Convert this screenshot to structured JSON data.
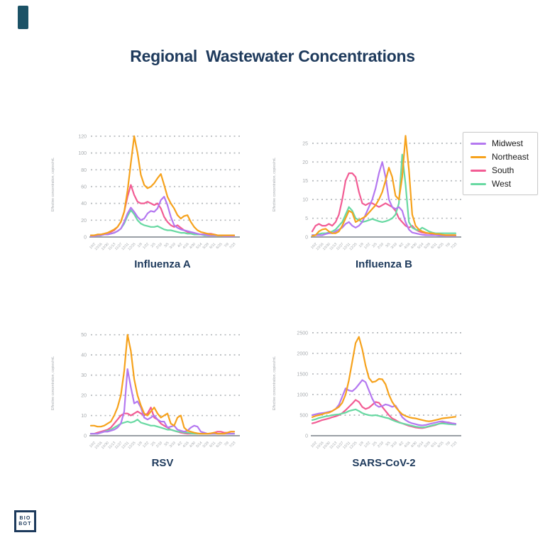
{
  "title": "Regional  Wastewater Concentrations",
  "brand": {
    "logo_line1": "BIO",
    "logo_line2": "BOT"
  },
  "colors": {
    "title_navy": "#1e3a5c",
    "axis_gray": "#9aa0a6",
    "tick_gray": "#a6aaae",
    "grid_gray": "#b4b8bc",
    "midwest_purple": "#b478f0",
    "northeast_orange": "#f6a21c",
    "south_pink": "#f25c94",
    "west_green": "#68d9a2"
  },
  "legend": {
    "entries": [
      {
        "label": "Midwest",
        "color": "#b478f0"
      },
      {
        "label": "Northeast",
        "color": "#f6a21c"
      },
      {
        "label": "South",
        "color": "#f25c94"
      },
      {
        "label": "West",
        "color": "#68d9a2"
      }
    ]
  },
  "ylabel": "Effective concentration, copies/mL",
  "x_ticks": [
    "10/2",
    "10/16",
    "10/30",
    "11/13",
    "11/27",
    "12/11",
    "12/25",
    "1/8",
    "1/22",
    "2/5",
    "2/19",
    "3/5",
    "3/19",
    "4/2",
    "4/16",
    "4/30",
    "5/14",
    "5/28",
    "6/11",
    "6/25",
    "7/9",
    "7/23"
  ],
  "chart_data": [
    {
      "type": "line",
      "title": "Influenza A",
      "ylabel": "Effective concentration, copies/mL",
      "ylim": [
        0,
        125
      ],
      "yticks": [
        0,
        20,
        40,
        60,
        80,
        100,
        120
      ],
      "grid": "dotted-horizontal",
      "legend_position": "figure-right",
      "series": [
        {
          "name": "South",
          "color": "#f25c94",
          "values": [
            2,
            2,
            2,
            3,
            4,
            5,
            6,
            8,
            12,
            18,
            30,
            48,
            62,
            50,
            42,
            40,
            40,
            42,
            40,
            38,
            40,
            34,
            24,
            18,
            14,
            12,
            14,
            11,
            8,
            6,
            5,
            4,
            3,
            3,
            3,
            4,
            4,
            3,
            2,
            2,
            2,
            2,
            2,
            2
          ]
        },
        {
          "name": "West",
          "color": "#68d9a2",
          "values": [
            1,
            1,
            2,
            2,
            3,
            3,
            4,
            5,
            7,
            10,
            16,
            25,
            32,
            27,
            20,
            16,
            14,
            13,
            12,
            12,
            13,
            11,
            9,
            8,
            8,
            7,
            6,
            5,
            5,
            4,
            4,
            3,
            3,
            3,
            2,
            2,
            2,
            2,
            2,
            2,
            1,
            1,
            1,
            1
          ]
        },
        {
          "name": "Midwest",
          "color": "#b478f0",
          "values": [
            1,
            1,
            2,
            2,
            3,
            3,
            4,
            5,
            7,
            10,
            18,
            28,
            35,
            30,
            24,
            20,
            22,
            28,
            31,
            30,
            34,
            44,
            48,
            38,
            24,
            14,
            11,
            9,
            8,
            7,
            6,
            5,
            4,
            3,
            3,
            2,
            2,
            2,
            2,
            2,
            1,
            1,
            1,
            1
          ]
        },
        {
          "name": "Northeast",
          "color": "#f6a21c",
          "values": [
            2,
            2,
            3,
            3,
            4,
            5,
            7,
            9,
            12,
            18,
            30,
            55,
            88,
            120,
            100,
            74,
            62,
            58,
            60,
            64,
            70,
            75,
            62,
            48,
            40,
            34,
            26,
            22,
            25,
            26,
            18,
            12,
            8,
            6,
            5,
            4,
            3,
            3,
            2,
            2,
            2,
            2,
            2,
            2
          ]
        }
      ]
    },
    {
      "type": "line",
      "title": "Influenza B",
      "ylabel": "Effective concentration, copies/mL",
      "ylim": [
        0,
        28
      ],
      "yticks": [
        0,
        5,
        10,
        15,
        20,
        25
      ],
      "grid": "dotted-horizontal",
      "legend_position": "figure-right",
      "series": [
        {
          "name": "South",
          "color": "#f25c94",
          "values": [
            1.5,
            3,
            3.5,
            3,
            3,
            3.5,
            3,
            4,
            6,
            10,
            15,
            17,
            17,
            16,
            12,
            9,
            8.5,
            9,
            9,
            8.5,
            8,
            8.5,
            9,
            8.5,
            8,
            7,
            5,
            4,
            3,
            2.5,
            3,
            2,
            1.5,
            1.2,
            1,
            1,
            0.8,
            0.8,
            0.6,
            0.6,
            0.5,
            0.5,
            0.5,
            0.5
          ]
        },
        {
          "name": "West",
          "color": "#68d9a2",
          "values": [
            0.5,
            0.5,
            0.8,
            1,
            1,
            1.2,
            1.5,
            2,
            3,
            4,
            6,
            8,
            7,
            5,
            4.5,
            4,
            4.2,
            4.5,
            4.8,
            4.5,
            4.2,
            4,
            4.2,
            4.5,
            5,
            6,
            9,
            22,
            14,
            4,
            2.5,
            2,
            1.8,
            2.5,
            2,
            1.5,
            1.2,
            1,
            1,
            1,
            1,
            1,
            1,
            1
          ]
        },
        {
          "name": "Midwest",
          "color": "#b478f0",
          "values": [
            0.5,
            0.5,
            0.5,
            0.5,
            0.8,
            1,
            1,
            1.5,
            2,
            2.5,
            3.5,
            4,
            3,
            2.5,
            3,
            4,
            6,
            8,
            10,
            13,
            17,
            20,
            16,
            10,
            8,
            7.5,
            8,
            7,
            4,
            2,
            1.2,
            1,
            0.8,
            0.6,
            0.5,
            0.5,
            0.5,
            0.5,
            0.4,
            0.4,
            0.3,
            0.3,
            0.3,
            0.3
          ]
        },
        {
          "name": "Northeast",
          "color": "#f6a21c",
          "values": [
            0.3,
            0.5,
            1.5,
            2,
            2.2,
            1.5,
            1,
            1,
            1.5,
            3,
            5,
            7,
            6.5,
            4,
            4.5,
            5,
            5.5,
            6.5,
            7.5,
            8.5,
            10,
            12,
            15,
            18.5,
            16,
            11,
            10,
            16,
            27,
            18,
            6,
            3,
            2,
            1.5,
            1.2,
            1,
            1,
            0.8,
            0.8,
            0.6,
            0.5,
            0.5,
            0.5,
            0.5
          ]
        }
      ]
    },
    {
      "type": "line",
      "title": "RSV",
      "ylabel": "Effective concentration, copies/mL",
      "ylim": [
        0,
        52
      ],
      "yticks": [
        0,
        10,
        20,
        30,
        40,
        50
      ],
      "grid": "dotted-horizontal",
      "legend_position": "figure-right",
      "series": [
        {
          "name": "South",
          "color": "#f25c94",
          "values": [
            1,
            1,
            1.5,
            2,
            2.5,
            3,
            4,
            6,
            8,
            10,
            11,
            11,
            10,
            11,
            12,
            11,
            10,
            11,
            14,
            9,
            8,
            6,
            5,
            4,
            3,
            2.5,
            2,
            1.5,
            1.2,
            1,
            1,
            1,
            1,
            1,
            1,
            1,
            1,
            1.5,
            2,
            2,
            1.5,
            1.5,
            2,
            2
          ]
        },
        {
          "name": "West",
          "color": "#68d9a2",
          "values": [
            1,
            1,
            1,
            1.5,
            2,
            2.5,
            3,
            4,
            5,
            6,
            6.5,
            7,
            6.5,
            7,
            8,
            6.5,
            6,
            5.5,
            5,
            5,
            4.5,
            4,
            3.5,
            3,
            3,
            2.5,
            2,
            2,
            1.5,
            1.5,
            1.2,
            1,
            1,
            1,
            1,
            1,
            1,
            1,
            1,
            1,
            1,
            1,
            1,
            1
          ]
        },
        {
          "name": "Midwest",
          "color": "#b478f0",
          "values": [
            1,
            1,
            1,
            1.5,
            2,
            2,
            2.5,
            3,
            4,
            6,
            12,
            33,
            24,
            16,
            17,
            14,
            9,
            8,
            9,
            10,
            8,
            7,
            7,
            4,
            4.5,
            5,
            3,
            2.5,
            2,
            2.5,
            4,
            5,
            4.5,
            2,
            1.5,
            1,
            1,
            1,
            1,
            1,
            1,
            1,
            1,
            1
          ]
        },
        {
          "name": "Northeast",
          "color": "#f6a21c",
          "values": [
            5,
            5,
            4.5,
            4.5,
            5,
            6,
            7,
            10,
            14,
            20,
            32,
            50,
            42,
            28,
            20,
            15,
            11,
            10,
            12,
            14,
            11,
            9,
            10,
            11,
            6,
            5,
            9,
            10,
            4,
            2.5,
            2,
            1.5,
            1.2,
            1,
            1,
            1,
            1.2,
            1.5,
            1,
            1,
            1,
            1.5,
            2,
            2
          ]
        }
      ]
    },
    {
      "type": "line",
      "title": "SARS-CoV-2",
      "ylabel": "Effective concentration, copies/mL",
      "ylim": [
        0,
        2550
      ],
      "yticks": [
        0,
        500,
        1000,
        1500,
        2000,
        2500
      ],
      "grid": "dotted-horizontal",
      "legend_position": "figure-right",
      "series": [
        {
          "name": "South",
          "color": "#f25c94",
          "values": [
            300,
            320,
            350,
            380,
            400,
            420,
            450,
            470,
            500,
            550,
            620,
            700,
            780,
            870,
            820,
            700,
            650,
            680,
            750,
            820,
            800,
            700,
            600,
            500,
            420,
            380,
            330,
            300,
            270,
            240,
            220,
            200,
            190,
            185,
            200,
            220,
            240,
            260,
            290,
            310,
            330,
            320,
            300,
            290
          ]
        },
        {
          "name": "West",
          "color": "#68d9a2",
          "values": [
            380,
            400,
            430,
            450,
            470,
            480,
            500,
            510,
            520,
            540,
            560,
            600,
            620,
            640,
            600,
            550,
            520,
            500,
            490,
            500,
            480,
            460,
            440,
            420,
            380,
            350,
            320,
            300,
            280,
            260,
            240,
            220,
            210,
            200,
            210,
            230,
            250,
            270,
            290,
            300,
            290,
            280,
            275,
            270
          ]
        },
        {
          "name": "Midwest",
          "color": "#b478f0",
          "values": [
            500,
            520,
            540,
            550,
            560,
            580,
            600,
            650,
            750,
            950,
            1150,
            1100,
            1080,
            1150,
            1250,
            1350,
            1300,
            1100,
            900,
            750,
            700,
            720,
            760,
            740,
            700,
            730,
            600,
            450,
            380,
            330,
            300,
            280,
            260,
            250,
            260,
            280,
            300,
            320,
            340,
            350,
            330,
            310,
            300,
            290
          ]
        },
        {
          "name": "Northeast",
          "color": "#f6a21c",
          "values": [
            450,
            480,
            500,
            520,
            550,
            560,
            600,
            650,
            700,
            800,
            1000,
            1350,
            1800,
            2250,
            2400,
            2100,
            1700,
            1400,
            1300,
            1320,
            1380,
            1370,
            1250,
            1000,
            820,
            700,
            600,
            520,
            480,
            450,
            430,
            420,
            400,
            380,
            360,
            350,
            360,
            380,
            400,
            420,
            430,
            440,
            450,
            460
          ]
        }
      ]
    }
  ]
}
